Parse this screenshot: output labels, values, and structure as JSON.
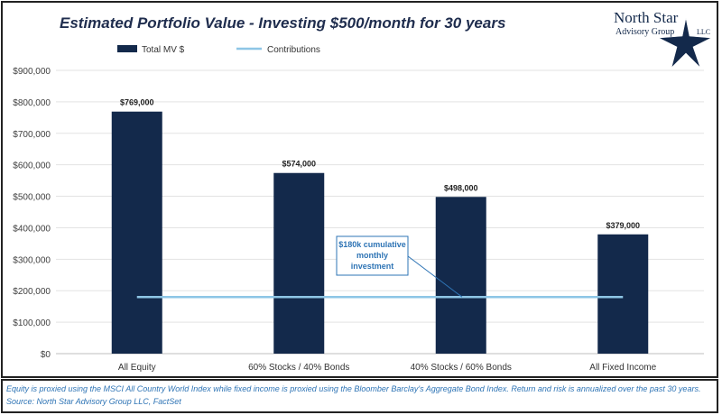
{
  "title": "Estimated Portfolio Value - Investing $500/month for 30 years",
  "logo": {
    "line1": "North Star",
    "line2": "Advisory Group",
    "suffix": "LLC"
  },
  "chart_data": {
    "type": "bar",
    "categories": [
      "All Equity",
      "60% Stocks / 40% Bonds",
      "40% Stocks / 60% Bonds",
      "All Fixed Income"
    ],
    "series": [
      {
        "name": "Total MV $",
        "type": "bar",
        "values": [
          769000,
          574000,
          498000,
          379000
        ],
        "labels": [
          "$769,000",
          "$574,000",
          "$498,000",
          "$379,000"
        ],
        "color": "#13294b"
      },
      {
        "name": "Contributions",
        "type": "line",
        "values": [
          180000,
          180000,
          180000,
          180000
        ],
        "color": "#8ec6e6"
      }
    ],
    "ylim": [
      0,
      900000
    ],
    "yticks": [
      "$0",
      "$100,000",
      "$200,000",
      "$300,000",
      "$400,000",
      "$500,000",
      "$600,000",
      "$700,000",
      "$800,000",
      "$900,000"
    ],
    "grid": true,
    "legend": "top-left",
    "annotation": [
      "$180k cumulative",
      "monthly",
      "investment"
    ]
  },
  "notes": {
    "footnote": "Equity is proxied using the MSCI All Country World Index while fixed income is proxied using the Bloomber Barclay's Aggregate Bond Index. Return and risk is annualized over the past 30 years.",
    "source": "Source: North Star Advisory Group LLC, FactSet"
  }
}
